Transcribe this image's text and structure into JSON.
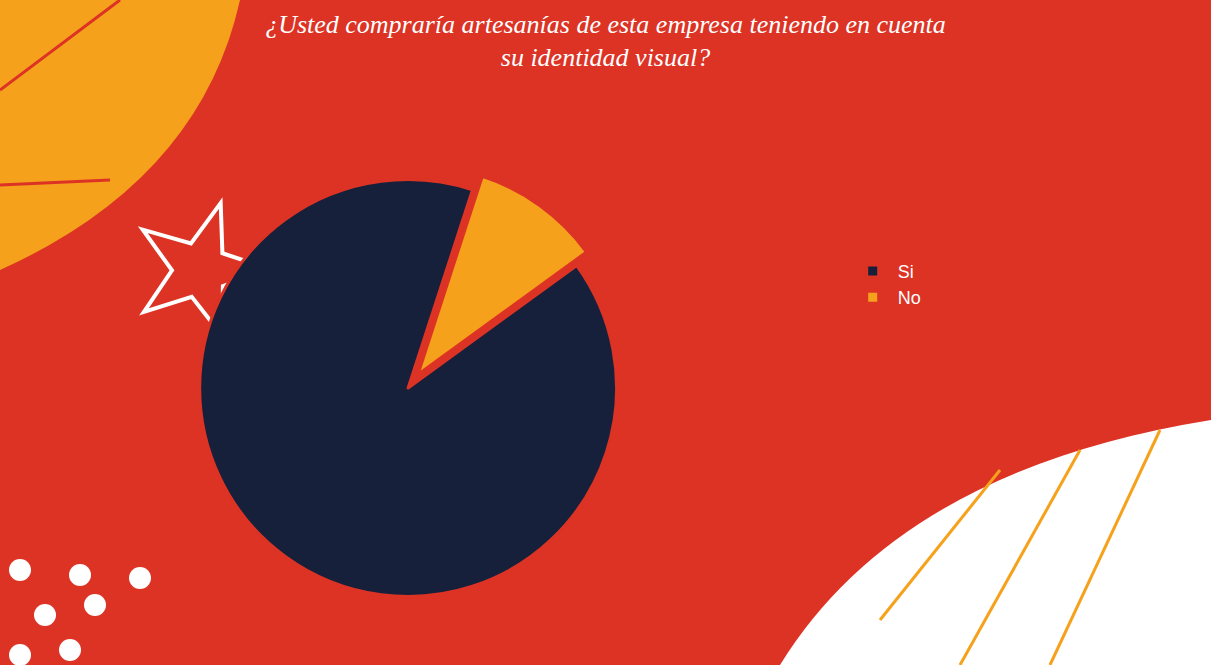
{
  "chart_data": {
    "type": "pie",
    "title": "¿Usted compraría artesanías de esta empresa teniendo en cuenta su identidad visual?",
    "categories": [
      "Si",
      "No"
    ],
    "values": [
      90,
      10
    ],
    "colors": [
      "#16203a",
      "#f5a11c"
    ],
    "legend": "right",
    "data_labels": false
  }
}
